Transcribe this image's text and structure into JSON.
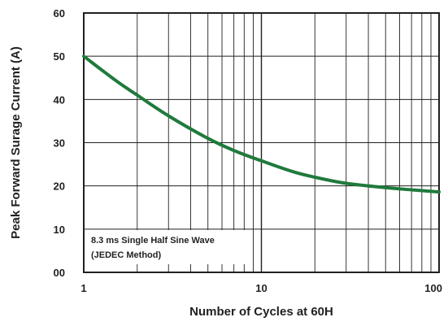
{
  "chart_data": {
    "type": "line",
    "xlabel": "Number of Cycles at 60H",
    "ylabel": "Peak Forward Surage Current (A)",
    "x_scale": "log",
    "xlim": [
      1,
      100
    ],
    "ylim": [
      0,
      60
    ],
    "x_ticks": [
      1,
      10,
      100
    ],
    "x_tick_labels": [
      "1",
      "10",
      "100"
    ],
    "y_ticks": [
      0,
      10,
      20,
      30,
      40,
      50,
      60
    ],
    "y_tick_labels": [
      "00",
      "10",
      "20",
      "30",
      "40",
      "50",
      "60"
    ],
    "grid": true,
    "annotations": [
      "8.3 ms Single Half Sine Wave",
      "(JEDEC Method)"
    ],
    "series": [
      {
        "color": "#1f7a3c",
        "x": [
          1,
          1.5,
          2,
          3,
          5,
          7,
          10,
          15,
          20,
          30,
          50,
          70,
          100
        ],
        "y": [
          50,
          44.5,
          41,
          36.2,
          31,
          28.2,
          25.8,
          23.3,
          22,
          20.6,
          19.6,
          19.1,
          18.6
        ]
      }
    ]
  }
}
